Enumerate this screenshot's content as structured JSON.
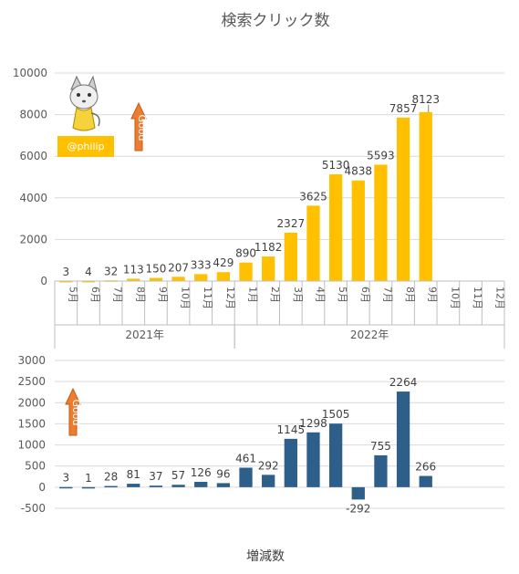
{
  "chart_data": [
    {
      "type": "bar",
      "title": "検索クリック数",
      "categories": [
        "5月",
        "6月",
        "7月",
        "8月",
        "9月",
        "10月",
        "11月",
        "12月",
        "1月",
        "2月",
        "3月",
        "4月",
        "5月",
        "6月",
        "7月",
        "8月",
        "9月",
        "10月",
        "11月",
        "12月"
      ],
      "groups": [
        {
          "label": "2021年",
          "count": 8
        },
        {
          "label": "2022年",
          "count": 12
        }
      ],
      "values": [
        3,
        4,
        32,
        113,
        150,
        207,
        333,
        429,
        890,
        1182,
        2327,
        3625,
        5130,
        4838,
        5593,
        7857,
        8123,
        null,
        null,
        null
      ],
      "yticks": [
        0,
        2000,
        4000,
        6000,
        8000,
        10000
      ],
      "ylim": [
        0,
        10000
      ],
      "bar_color": "#ffc000",
      "grid": true,
      "annotations": {
        "badge": "@philip",
        "arrow_label": "Good",
        "arrow_color": "#ed7d31"
      }
    },
    {
      "type": "bar",
      "title": "増減数",
      "categories": [
        "5月",
        "6月",
        "7月",
        "8月",
        "9月",
        "10月",
        "11月",
        "12月",
        "1月",
        "2月",
        "3月",
        "4月",
        "5月",
        "6月",
        "7月",
        "8月",
        "9月",
        "10月",
        "11月",
        "12月"
      ],
      "values": [
        3,
        1,
        28,
        81,
        37,
        57,
        126,
        96,
        461,
        292,
        1145,
        1298,
        1505,
        -292,
        755,
        2264,
        266,
        null,
        null,
        null
      ],
      "yticks": [
        -500,
        0,
        500,
        1000,
        1500,
        2000,
        2500,
        3000
      ],
      "ylim": [
        -500,
        3000
      ],
      "bar_color": "#2e5f8a",
      "grid": true,
      "annotations": {
        "arrow_label": "Good",
        "arrow_color": "#ed7d31"
      }
    }
  ]
}
